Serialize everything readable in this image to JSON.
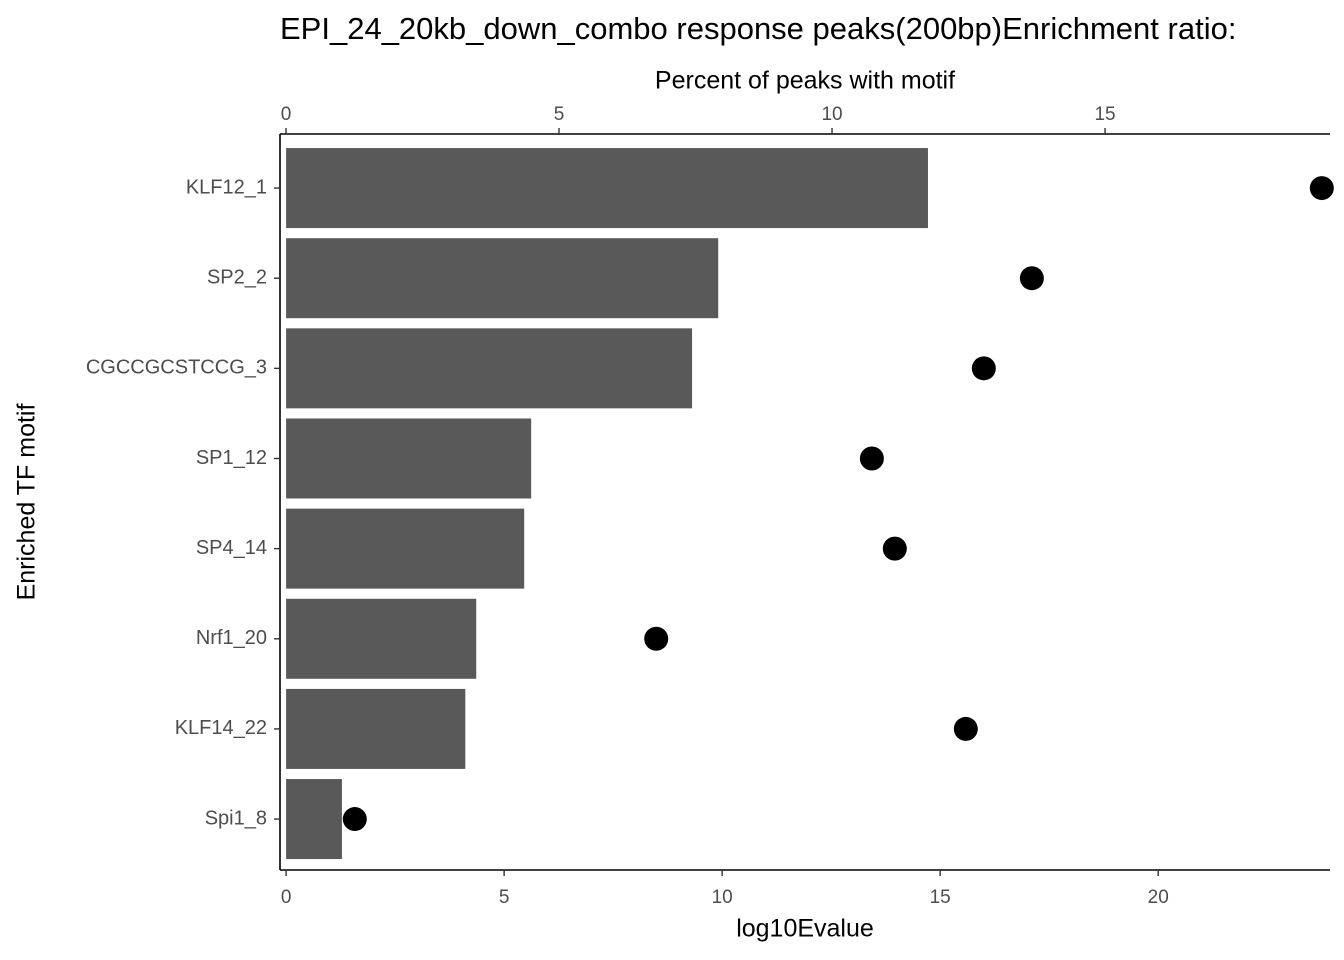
{
  "chart_data": {
    "type": "bar",
    "orientation": "horizontal",
    "title": "EPI_24_20kb_down_combo response peaks(200bp)Enrichment ratio:",
    "xlabel": "log10Evalue",
    "x2label": "Percent of peaks with motif",
    "ylabel": "Enriched TF motif",
    "categories": [
      "KLF12_1",
      "SP2_2",
      "CGCCGCSTCCG_3",
      "SP1_12",
      "SP4_14",
      "Nrf1_20",
      "KLF14_22",
      "Spi1_8"
    ],
    "series": [
      {
        "type": "bar",
        "color": "#595959",
        "values": [
          14.72,
          9.91,
          9.31,
          5.62,
          5.46,
          4.36,
          4.11,
          1.28
        ]
      },
      {
        "type": "point",
        "axis": "x2",
        "color": "#000000",
        "values": [
          18.97,
          13.66,
          12.78,
          10.73,
          11.15,
          6.78,
          12.45,
          1.26
        ]
      }
    ],
    "xlim": [
      -0.14,
      23.94
    ],
    "xticks": [
      0,
      5,
      10,
      15,
      20
    ],
    "x2lim": [
      -0.11,
      19.12
    ],
    "x2ticks": [
      0,
      5,
      10,
      15
    ]
  }
}
